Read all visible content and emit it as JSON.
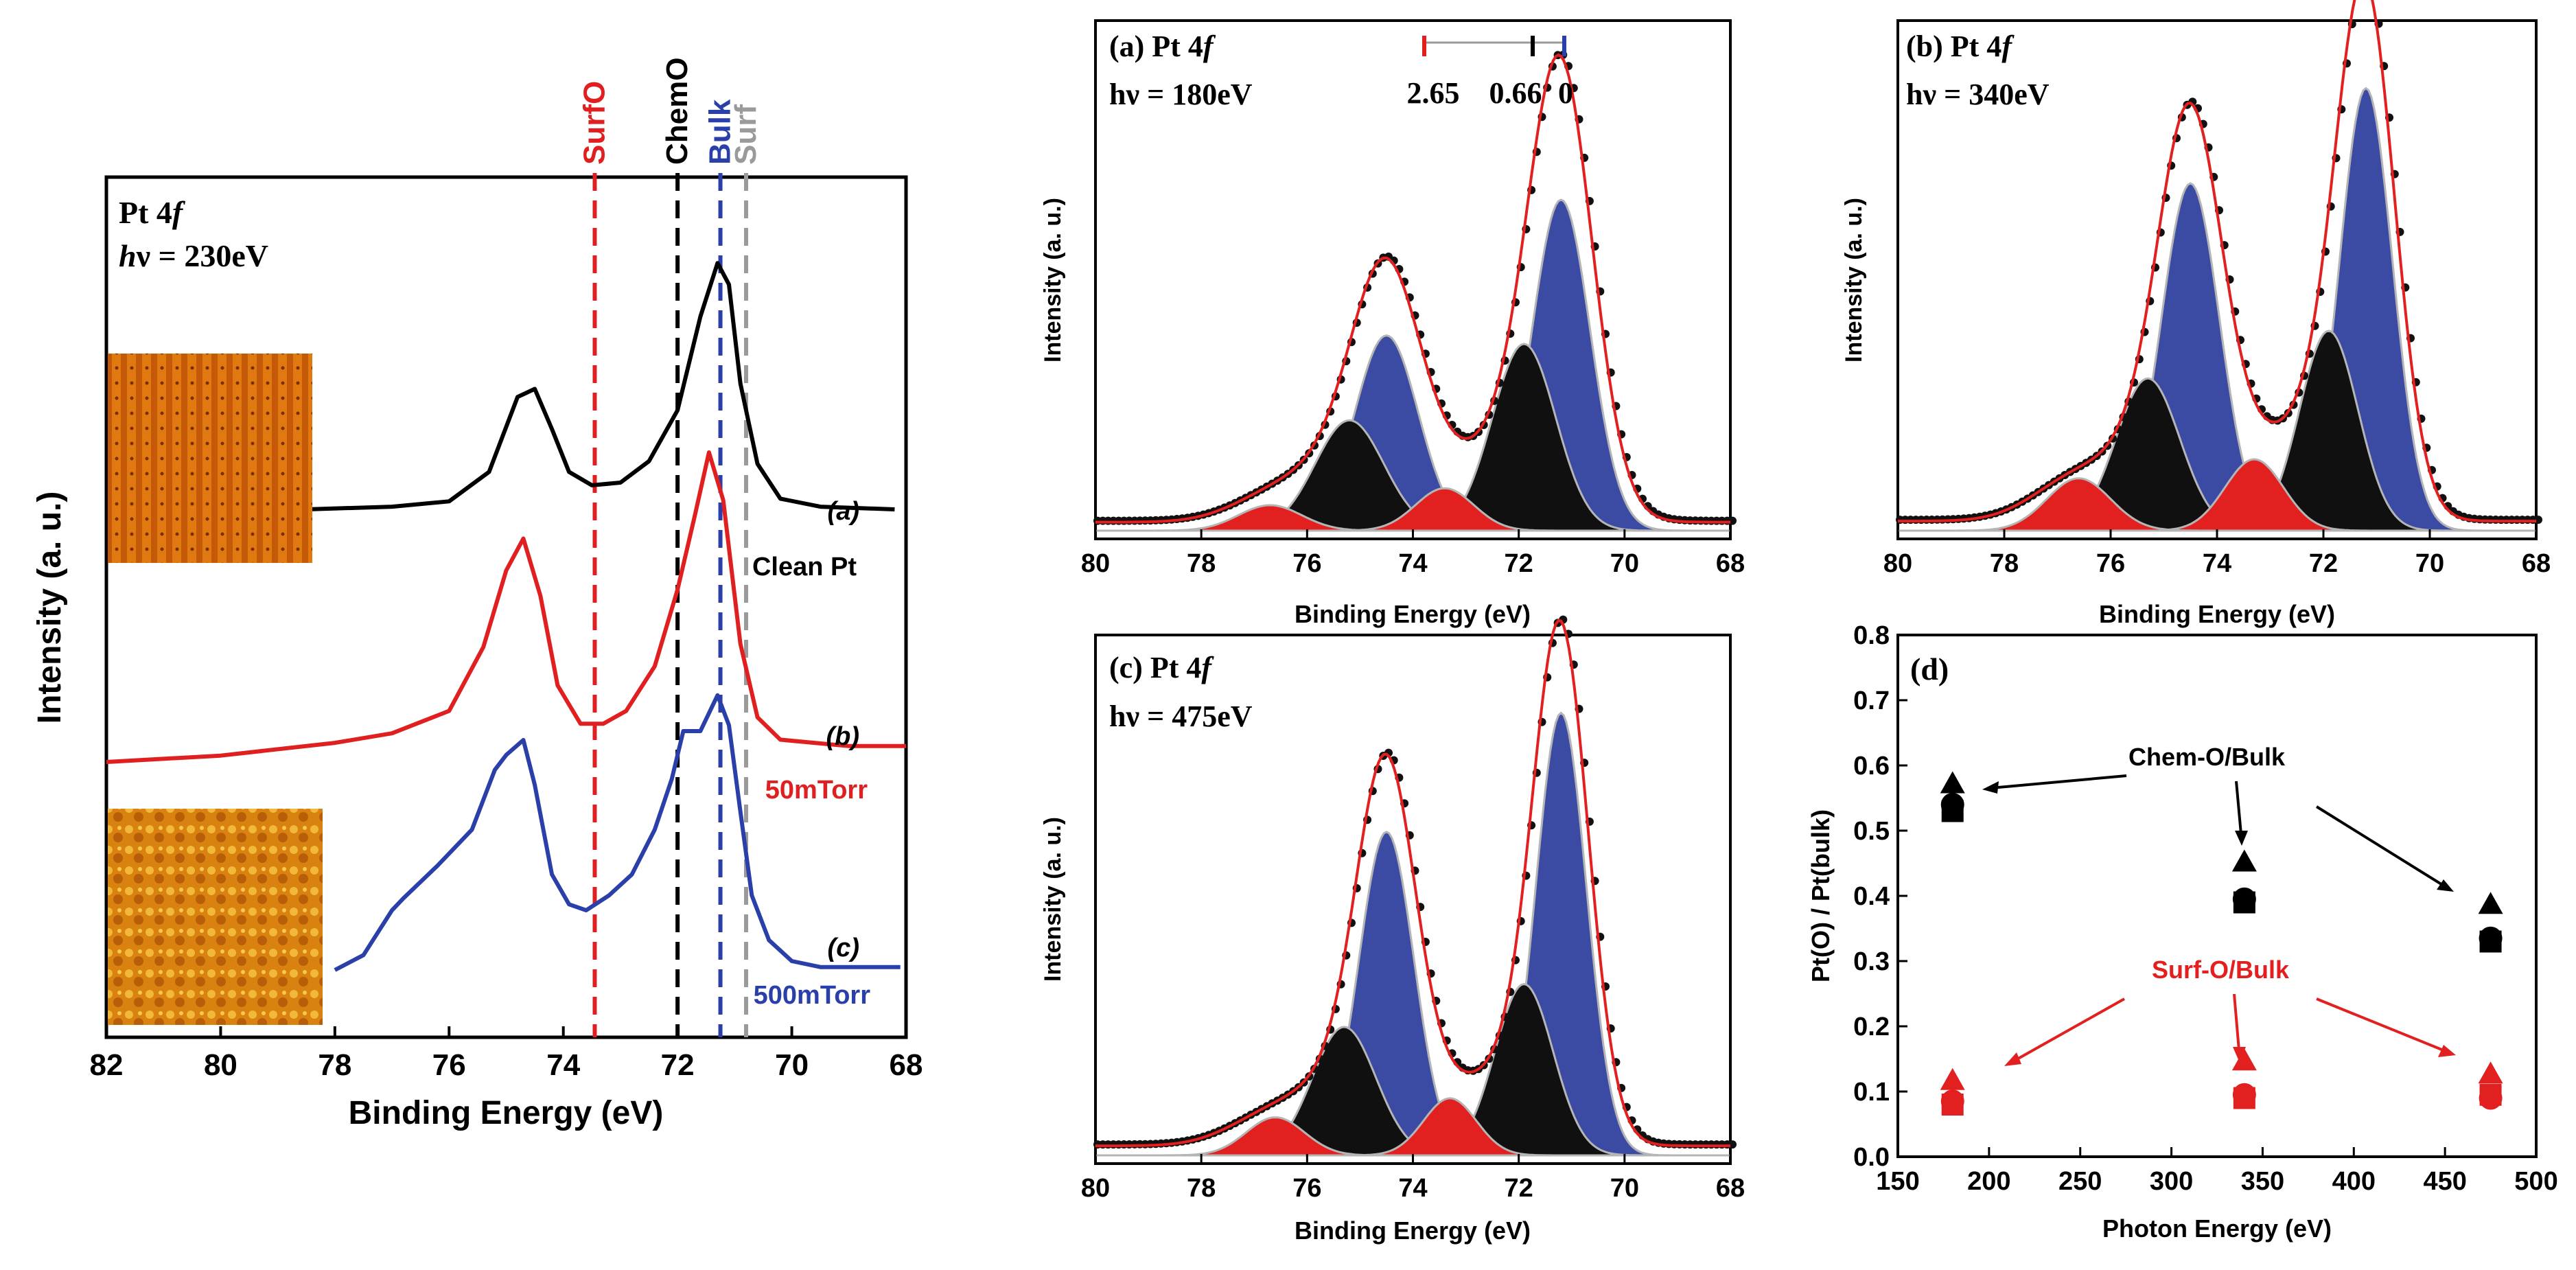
{
  "chart_data": [
    {
      "type": "line",
      "panel": "main",
      "title_line1": "Pt 4",
      "title_f": "f",
      "title_line2_h": "h",
      "title_line2": "ν = 230eV",
      "xlabel": "Binding Energy (eV)",
      "ylabel": "Intensity (a. u.)",
      "xlim": [
        82,
        68
      ],
      "x_ticks": [
        "82",
        "80",
        "78",
        "76",
        "74",
        "72",
        "70",
        "68"
      ],
      "reference_lines": [
        {
          "label": "SurfO",
          "x": 73.45,
          "color": "#e02020"
        },
        {
          "label": "ChemO",
          "x": 72.0,
          "color": "#000000"
        },
        {
          "label": "Bulk",
          "x": 71.25,
          "color": "#2a3fa8"
        },
        {
          "label": "Surf",
          "x": 70.8,
          "color": "#9a9a9a"
        }
      ],
      "series": [
        {
          "name": "Clean Pt",
          "tag": "(a)",
          "color": "#000000",
          "points": [
            [
              78.5,
              0.08
            ],
            [
              77,
              0.09
            ],
            [
              76,
              0.11
            ],
            [
              75.3,
              0.22
            ],
            [
              74.8,
              0.5
            ],
            [
              74.5,
              0.53
            ],
            [
              74.2,
              0.38
            ],
            [
              73.9,
              0.22
            ],
            [
              73.5,
              0.17
            ],
            [
              73,
              0.18
            ],
            [
              72.5,
              0.26
            ],
            [
              72,
              0.45
            ],
            [
              71.6,
              0.8
            ],
            [
              71.3,
              1.0
            ],
            [
              71.1,
              0.92
            ],
            [
              70.9,
              0.55
            ],
            [
              70.6,
              0.25
            ],
            [
              70.2,
              0.12
            ],
            [
              69.5,
              0.09
            ],
            [
              68.2,
              0.08
            ]
          ]
        },
        {
          "name": "50mTorr",
          "tag": "(b)",
          "color": "#e02020",
          "points": [
            [
              82,
              0.08
            ],
            [
              80,
              0.1
            ],
            [
              78,
              0.14
            ],
            [
              77,
              0.17
            ],
            [
              76,
              0.24
            ],
            [
              75.4,
              0.44
            ],
            [
              75,
              0.68
            ],
            [
              74.7,
              0.78
            ],
            [
              74.4,
              0.6
            ],
            [
              74.1,
              0.32
            ],
            [
              73.7,
              0.2
            ],
            [
              73.3,
              0.2
            ],
            [
              72.9,
              0.24
            ],
            [
              72.4,
              0.38
            ],
            [
              72,
              0.62
            ],
            [
              71.7,
              0.85
            ],
            [
              71.45,
              1.05
            ],
            [
              71.2,
              0.9
            ],
            [
              70.9,
              0.45
            ],
            [
              70.6,
              0.22
            ],
            [
              70.2,
              0.15
            ],
            [
              69,
              0.13
            ],
            [
              68,
              0.13
            ]
          ]
        },
        {
          "name": "500mTorr",
          "tag": "(c)",
          "color": "#2a3fa8",
          "points": [
            [
              78,
              0.13
            ],
            [
              77.5,
              0.18
            ],
            [
              77,
              0.33
            ],
            [
              76.8,
              0.37
            ],
            [
              76.2,
              0.48
            ],
            [
              75.6,
              0.6
            ],
            [
              75.2,
              0.8
            ],
            [
              75,
              0.85
            ],
            [
              74.7,
              0.9
            ],
            [
              74.5,
              0.75
            ],
            [
              74.2,
              0.45
            ],
            [
              73.9,
              0.35
            ],
            [
              73.6,
              0.33
            ],
            [
              73.2,
              0.38
            ],
            [
              72.8,
              0.45
            ],
            [
              72.4,
              0.6
            ],
            [
              72.1,
              0.77
            ],
            [
              71.9,
              0.93
            ],
            [
              71.6,
              0.93
            ],
            [
              71.3,
              1.05
            ],
            [
              71.1,
              0.95
            ],
            [
              70.9,
              0.66
            ],
            [
              70.7,
              0.38
            ],
            [
              70.4,
              0.23
            ],
            [
              70,
              0.16
            ],
            [
              69.5,
              0.14
            ],
            [
              68.1,
              0.14
            ]
          ]
        }
      ]
    },
    {
      "type": "area",
      "panel": "a",
      "label": "(a) Pt 4",
      "label_f": "f",
      "energy": "hν = 180eV",
      "xlabel": "Binding Energy (eV)",
      "ylabel": "Intensity (a. u.)",
      "xlim": [
        80,
        68
      ],
      "x_ticks": [
        "80",
        "78",
        "76",
        "74",
        "72",
        "70",
        "68"
      ],
      "shift_scale": [
        "2.65",
        "0.66",
        "0"
      ],
      "components": [
        {
          "name": "Bulk",
          "color": "#3b4ba4",
          "peaks": [
            {
              "x": 71.2,
              "h": 0.78,
              "w": 0.55
            },
            {
              "x": 74.5,
              "h": 0.46,
              "w": 0.6
            }
          ]
        },
        {
          "name": "Chem-O",
          "color": "#101010",
          "peaks": [
            {
              "x": 71.9,
              "h": 0.44,
              "w": 0.6
            },
            {
              "x": 75.2,
              "h": 0.26,
              "w": 0.65
            }
          ]
        },
        {
          "name": "Surf-O",
          "color": "#e32020",
          "peaks": [
            {
              "x": 73.4,
              "h": 0.1,
              "w": 0.55
            },
            {
              "x": 76.7,
              "h": 0.06,
              "w": 0.6
            }
          ]
        }
      ],
      "envelope_peaks": [
        {
          "x": 71.2,
          "h": 0.95,
          "w": 0.6
        },
        {
          "x": 71.9,
          "h": 0.2,
          "w": 0.9
        },
        {
          "x": 74.5,
          "h": 0.52,
          "w": 0.65
        },
        {
          "x": 75.3,
          "h": 0.12,
          "w": 0.9
        },
        {
          "x": 73.4,
          "h": 0.06,
          "w": 0.7
        },
        {
          "x": 76.7,
          "h": 0.05,
          "w": 0.8
        }
      ]
    },
    {
      "type": "area",
      "panel": "b",
      "label": "(b) Pt 4",
      "label_f": "f",
      "energy": "hν = 340eV",
      "xlabel": "Binding Energy (eV)",
      "ylabel": "Intensity (a. u.)",
      "xlim": [
        80,
        68
      ],
      "x_ticks": [
        "80",
        "78",
        "76",
        "74",
        "72",
        "70",
        "68"
      ],
      "components": [
        {
          "name": "Bulk",
          "color": "#3b4ba4",
          "peaks": [
            {
              "x": 71.2,
              "h": 0.93,
              "w": 0.5
            },
            {
              "x": 74.5,
              "h": 0.73,
              "w": 0.55
            }
          ]
        },
        {
          "name": "Chem-O",
          "color": "#101010",
          "peaks": [
            {
              "x": 71.9,
              "h": 0.42,
              "w": 0.55
            },
            {
              "x": 75.3,
              "h": 0.32,
              "w": 0.6
            }
          ]
        },
        {
          "name": "Surf-O",
          "color": "#e32020",
          "peaks": [
            {
              "x": 73.3,
              "h": 0.15,
              "w": 0.55
            },
            {
              "x": 76.6,
              "h": 0.11,
              "w": 0.6
            }
          ]
        }
      ],
      "envelope_peaks": [
        {
          "x": 71.2,
          "h": 1.0,
          "w": 0.55
        },
        {
          "x": 71.9,
          "h": 0.2,
          "w": 0.8
        },
        {
          "x": 74.5,
          "h": 0.78,
          "w": 0.6
        },
        {
          "x": 75.3,
          "h": 0.12,
          "w": 0.8
        },
        {
          "x": 73.3,
          "h": 0.1,
          "w": 0.7
        },
        {
          "x": 76.7,
          "h": 0.08,
          "w": 0.8
        }
      ]
    },
    {
      "type": "area",
      "panel": "c",
      "label": "(c) Pt 4",
      "label_f": "f",
      "energy": "hν = 475eV",
      "xlabel": "Binding Energy (eV)",
      "ylabel": "Intensity (a. u.)",
      "xlim": [
        80,
        68
      ],
      "x_ticks": [
        "80",
        "78",
        "76",
        "74",
        "72",
        "70",
        "68"
      ],
      "components": [
        {
          "name": "Bulk",
          "color": "#3b4ba4",
          "peaks": [
            {
              "x": 71.2,
              "h": 0.93,
              "w": 0.48
            },
            {
              "x": 74.5,
              "h": 0.68,
              "w": 0.52
            }
          ]
        },
        {
          "name": "Chem-O",
          "color": "#101010",
          "peaks": [
            {
              "x": 71.9,
              "h": 0.36,
              "w": 0.55
            },
            {
              "x": 75.3,
              "h": 0.27,
              "w": 0.6
            }
          ]
        },
        {
          "name": "Surf-O",
          "color": "#e32020",
          "peaks": [
            {
              "x": 73.3,
              "h": 0.12,
              "w": 0.5
            },
            {
              "x": 76.6,
              "h": 0.08,
              "w": 0.55
            }
          ]
        }
      ],
      "envelope_peaks": [
        {
          "x": 71.2,
          "h": 1.0,
          "w": 0.52
        },
        {
          "x": 71.9,
          "h": 0.15,
          "w": 0.8
        },
        {
          "x": 74.5,
          "h": 0.73,
          "w": 0.56
        },
        {
          "x": 75.3,
          "h": 0.12,
          "w": 0.8
        },
        {
          "x": 73.3,
          "h": 0.08,
          "w": 0.7
        },
        {
          "x": 76.7,
          "h": 0.06,
          "w": 0.8
        }
      ]
    },
    {
      "type": "scatter",
      "panel": "d",
      "label": "(d)",
      "xlabel": "Photon Energy (eV)",
      "ylabel": "Pt(O) / Pt(bulk)",
      "xlim": [
        150,
        500
      ],
      "ylim": [
        0.0,
        0.8
      ],
      "x_ticks": [
        "150",
        "200",
        "250",
        "300",
        "350",
        "400",
        "450",
        "500"
      ],
      "y_ticks": [
        "0.0",
        "0.1",
        "0.2",
        "0.3",
        "0.4",
        "0.5",
        "0.6",
        "0.7",
        "0.8"
      ],
      "annotations": [
        "Chem-O/Bulk",
        "Surf-O/Bulk"
      ],
      "series": [
        {
          "name": "Chem-O/Bulk triangle",
          "marker": "triangle",
          "color": "#000000",
          "points": [
            [
              180,
              0.57
            ],
            [
              340,
              0.45
            ],
            [
              475,
              0.385
            ]
          ]
        },
        {
          "name": "Chem-O/Bulk circle",
          "marker": "circle",
          "color": "#000000",
          "points": [
            [
              180,
              0.54
            ],
            [
              340,
              0.395
            ],
            [
              475,
              0.335
            ]
          ]
        },
        {
          "name": "Chem-O/Bulk square",
          "marker": "square",
          "color": "#000000",
          "points": [
            [
              180,
              0.53
            ],
            [
              340,
              0.39
            ],
            [
              475,
              0.33
            ]
          ]
        },
        {
          "name": "Surf-O/Bulk triangle",
          "marker": "triangle",
          "color": "#e32020",
          "points": [
            [
              180,
              0.115
            ],
            [
              340,
              0.145
            ],
            [
              475,
              0.125
            ]
          ]
        },
        {
          "name": "Surf-O/Bulk circle",
          "marker": "circle",
          "color": "#e32020",
          "points": [
            [
              180,
              0.085
            ],
            [
              340,
              0.095
            ],
            [
              475,
              0.09
            ]
          ]
        },
        {
          "name": "Surf-O/Bulk square",
          "marker": "square",
          "color": "#e32020",
          "points": [
            [
              180,
              0.08
            ],
            [
              340,
              0.09
            ],
            [
              475,
              0.095
            ]
          ]
        }
      ]
    }
  ]
}
